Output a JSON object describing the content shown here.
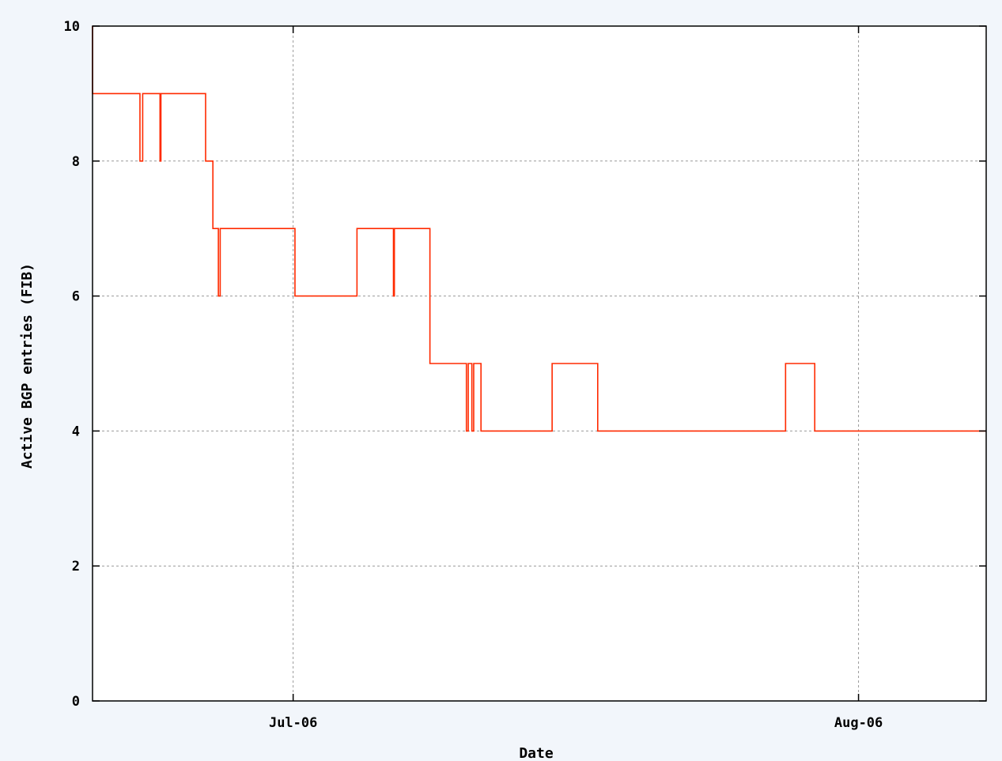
{
  "chart_data": {
    "type": "line",
    "line_style": "step",
    "title": "",
    "xlabel": "Date",
    "ylabel": "Active BGP entries (FIB)",
    "ylim": [
      0,
      10
    ],
    "yticks": [
      0,
      2,
      4,
      6,
      8,
      10
    ],
    "xlim": [
      "2006-06-20",
      "2006-08-08"
    ],
    "xticks": [
      {
        "date": "2006-07-01",
        "label": "Jul-06"
      },
      {
        "date": "2006-08-01",
        "label": "Aug-06"
      }
    ],
    "grid": true,
    "legend": "none",
    "series_color": "#ff2a00",
    "series": [
      {
        "x": [
          "2006-06-20",
          "2006-06-20",
          "2006-06-22.6",
          "2006-06-22.6",
          "2006-06-22.75",
          "2006-06-22.75",
          "2006-06-23.7",
          "2006-06-23.7",
          "2006-06-23.75",
          "2006-06-23.75",
          "2006-06-26.2",
          "2006-06-26.2",
          "2006-06-26.6",
          "2006-06-26.6",
          "2006-06-26.9",
          "2006-06-26.9",
          "2006-06-27.0",
          "2006-06-27.0",
          "2006-07-01.1",
          "2006-07-01.1",
          "2006-07-04.5",
          "2006-07-04.5",
          "2006-07-06.5",
          "2006-07-06.5",
          "2006-07-06.55",
          "2006-07-06.55",
          "2006-07-08.5",
          "2006-07-08.5",
          "2006-07-10.5",
          "2006-07-10.5",
          "2006-07-10.6",
          "2006-07-10.6",
          "2006-07-10.8",
          "2006-07-10.8",
          "2006-07-10.9",
          "2006-07-10.9",
          "2006-07-11.3",
          "2006-07-11.3",
          "2006-07-15.2",
          "2006-07-15.2",
          "2006-07-17.7",
          "2006-07-17.7",
          "2006-07-28.0",
          "2006-07-28.0",
          "2006-07-29.6",
          "2006-07-29.6",
          "2006-08-08"
        ],
        "y": [
          10,
          9,
          9,
          8,
          8,
          9,
          9,
          8,
          8,
          9,
          9,
          8,
          8,
          7,
          7,
          6,
          6,
          7,
          7,
          6,
          6,
          7,
          7,
          6,
          6,
          7,
          7,
          5,
          5,
          4,
          4,
          5,
          5,
          4,
          4,
          5,
          5,
          4,
          4,
          5,
          5,
          4,
          4,
          5,
          5,
          4,
          4
        ]
      }
    ]
  }
}
